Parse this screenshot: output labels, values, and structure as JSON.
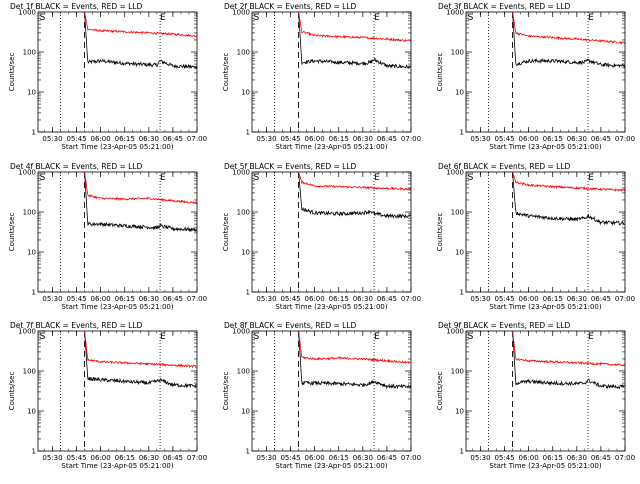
{
  "colors": {
    "events": "#000000",
    "lld": "#ff0000",
    "axis": "#000000"
  },
  "chart_data": [
    {
      "type": "line",
      "title": "Det 1f BLACK = Events, RED = LLD",
      "xlabel": "Start Time (23-Apr-05 05:21:00)",
      "ylabel": "Counts/sec",
      "x_ticks": [
        "05:30",
        "05:45",
        "06:00",
        "06:15",
        "06:30",
        "06:45",
        "07:00"
      ],
      "y_ticks": [
        "1",
        "10",
        "100",
        "1000"
      ],
      "y_scale": "log",
      "ylim": [
        1,
        1000
      ],
      "xlim": [
        "05:21",
        "07:00"
      ],
      "markers": {
        "S": "05:22",
        "E": "06:37"
      },
      "dotted_lines": [
        "05:35",
        "06:37"
      ],
      "dashed_line": "05:50",
      "series": [
        {
          "name": "Events",
          "x": [
            "05:50",
            "05:52",
            "06:00",
            "06:15",
            "06:30",
            "06:35",
            "06:37",
            "06:45",
            "07:00"
          ],
          "y": [
            1000,
            55,
            60,
            52,
            48,
            47,
            60,
            45,
            42
          ]
        },
        {
          "name": "LLD",
          "x": [
            "05:50",
            "05:52",
            "06:00",
            "06:15",
            "06:30",
            "06:45",
            "07:00"
          ],
          "y": [
            1000,
            370,
            340,
            320,
            300,
            280,
            250
          ]
        }
      ]
    },
    {
      "type": "line",
      "title": "Det 2f BLACK = Events, RED = LLD",
      "xlabel": "Start Time (23-Apr-05 05:21:00)",
      "ylabel": "Counts/sec",
      "x_ticks": [
        "05:30",
        "05:45",
        "06:00",
        "06:15",
        "06:30",
        "06:45",
        "07:00"
      ],
      "y_ticks": [
        "1",
        "10",
        "100",
        "1000"
      ],
      "y_scale": "log",
      "ylim": [
        1,
        1000
      ],
      "xlim": [
        "05:21",
        "07:00"
      ],
      "markers": {
        "S": "05:22",
        "E": "06:37"
      },
      "dotted_lines": [
        "05:35",
        "06:37"
      ],
      "dashed_line": "05:50",
      "series": [
        {
          "name": "Events",
          "x": [
            "05:50",
            "05:52",
            "06:00",
            "06:15",
            "06:30",
            "06:35",
            "06:37",
            "06:45",
            "07:00"
          ],
          "y": [
            1000,
            55,
            60,
            55,
            52,
            55,
            65,
            45,
            42
          ]
        },
        {
          "name": "LLD",
          "x": [
            "05:50",
            "05:52",
            "06:00",
            "06:15",
            "06:30",
            "06:45",
            "07:00"
          ],
          "y": [
            1000,
            320,
            260,
            240,
            230,
            210,
            190
          ]
        }
      ]
    },
    {
      "type": "line",
      "title": "Det 3f BLACK = Events, RED = LLD",
      "xlabel": "Start Time (23-Apr-05 05:21:00)",
      "ylabel": "Counts/sec",
      "x_ticks": [
        "05:30",
        "05:45",
        "06:00",
        "06:15",
        "06:30",
        "06:45",
        "07:00"
      ],
      "y_ticks": [
        "1",
        "10",
        "100",
        "1000"
      ],
      "y_scale": "log",
      "ylim": [
        1,
        1000
      ],
      "xlim": [
        "05:21",
        "07:00"
      ],
      "markers": {
        "S": "05:22",
        "E": "06:37"
      },
      "dotted_lines": [
        "05:35",
        "06:37"
      ],
      "dashed_line": "05:50",
      "series": [
        {
          "name": "Events",
          "x": [
            "05:50",
            "05:52",
            "06:00",
            "06:15",
            "06:30",
            "06:35",
            "06:37",
            "06:45",
            "07:00"
          ],
          "y": [
            1000,
            50,
            60,
            60,
            55,
            55,
            62,
            48,
            45
          ]
        },
        {
          "name": "LLD",
          "x": [
            "05:50",
            "05:52",
            "06:00",
            "06:15",
            "06:30",
            "06:45",
            "07:00"
          ],
          "y": [
            1000,
            300,
            250,
            230,
            210,
            190,
            170
          ]
        }
      ]
    },
    {
      "type": "line",
      "title": "Det 4f BLACK = Events, RED = LLD",
      "xlabel": "Start Time (23-Apr-05 05:21:00)",
      "ylabel": "Counts/sec",
      "x_ticks": [
        "05:30",
        "05:45",
        "06:00",
        "06:15",
        "06:30",
        "06:45",
        "07:00"
      ],
      "y_ticks": [
        "1",
        "10",
        "100",
        "1000"
      ],
      "y_scale": "log",
      "ylim": [
        1,
        1000
      ],
      "xlim": [
        "05:21",
        "07:00"
      ],
      "markers": {
        "S": "05:22",
        "E": "06:37"
      },
      "dotted_lines": [
        "05:35",
        "06:37"
      ],
      "dashed_line": "05:50",
      "series": [
        {
          "name": "Events",
          "x": [
            "05:50",
            "05:52",
            "06:00",
            "06:15",
            "06:30",
            "06:35",
            "06:37",
            "06:45",
            "07:00"
          ],
          "y": [
            1000,
            50,
            50,
            45,
            42,
            40,
            45,
            38,
            36
          ]
        },
        {
          "name": "LLD",
          "x": [
            "05:50",
            "05:52",
            "06:00",
            "06:15",
            "06:30",
            "06:45",
            "07:00"
          ],
          "y": [
            1000,
            260,
            220,
            210,
            220,
            190,
            170
          ]
        }
      ]
    },
    {
      "type": "line",
      "title": "Det 5f BLACK = Events, RED = LLD",
      "xlabel": "Start Time (23-Apr-05 05:21:00)",
      "ylabel": "Counts/sec",
      "x_ticks": [
        "05:30",
        "05:45",
        "06:00",
        "06:15",
        "06:30",
        "06:45",
        "07:00"
      ],
      "y_ticks": [
        "1",
        "10",
        "100",
        "1000"
      ],
      "y_scale": "log",
      "ylim": [
        1,
        1000
      ],
      "xlim": [
        "05:21",
        "07:00"
      ],
      "markers": {
        "S": "05:22",
        "E": "06:37"
      },
      "dotted_lines": [
        "05:35",
        "06:37"
      ],
      "dashed_line": "05:50",
      "series": [
        {
          "name": "Events",
          "x": [
            "05:50",
            "05:52",
            "06:00",
            "06:15",
            "06:30",
            "06:35",
            "06:37",
            "06:45",
            "07:00"
          ],
          "y": [
            1000,
            120,
            95,
            90,
            95,
            105,
            90,
            80,
            78
          ]
        },
        {
          "name": "LLD",
          "x": [
            "05:50",
            "05:52",
            "06:00",
            "06:15",
            "06:30",
            "06:45",
            "07:00"
          ],
          "y": [
            1000,
            560,
            450,
            430,
            410,
            390,
            370
          ]
        }
      ]
    },
    {
      "type": "line",
      "title": "Det 6f BLACK = Events, RED = LLD",
      "xlabel": "Start Time (23-Apr-05 05:21:00)",
      "ylabel": "Counts/sec",
      "x_ticks": [
        "05:30",
        "05:45",
        "06:00",
        "06:15",
        "06:30",
        "06:45",
        "07:00"
      ],
      "y_ticks": [
        "1",
        "10",
        "100",
        "1000"
      ],
      "y_scale": "log",
      "ylim": [
        1,
        1000
      ],
      "xlim": [
        "05:21",
        "07:00"
      ],
      "markers": {
        "S": "05:22",
        "E": "06:37"
      },
      "dotted_lines": [
        "05:35",
        "06:37"
      ],
      "dashed_line": "05:50",
      "series": [
        {
          "name": "Events",
          "x": [
            "05:50",
            "05:52",
            "06:00",
            "06:15",
            "06:30",
            "06:35",
            "06:37",
            "06:45",
            "07:00"
          ],
          "y": [
            1000,
            95,
            80,
            70,
            65,
            70,
            80,
            55,
            52
          ]
        },
        {
          "name": "LLD",
          "x": [
            "05:50",
            "05:52",
            "06:00",
            "06:15",
            "06:30",
            "06:45",
            "07:00"
          ],
          "y": [
            1000,
            560,
            470,
            430,
            400,
            370,
            350
          ]
        }
      ]
    },
    {
      "type": "line",
      "title": "Det 7f BLACK = Events, RED = LLD",
      "xlabel": "Start Time (23-Apr-05 05:21:00)",
      "ylabel": "Counts/sec",
      "x_ticks": [
        "05:30",
        "05:45",
        "06:00",
        "06:15",
        "06:30",
        "06:45",
        "07:00"
      ],
      "y_ticks": [
        "1",
        "10",
        "100",
        "1000"
      ],
      "y_scale": "log",
      "ylim": [
        1,
        1000
      ],
      "xlim": [
        "05:21",
        "07:00"
      ],
      "markers": {
        "S": "05:22",
        "E": "06:37"
      },
      "dotted_lines": [
        "05:35",
        "06:37"
      ],
      "dashed_line": "05:50",
      "series": [
        {
          "name": "Events",
          "x": [
            "05:50",
            "05:52",
            "06:00",
            "06:15",
            "06:30",
            "06:35",
            "06:37",
            "06:45",
            "07:00"
          ],
          "y": [
            1000,
            65,
            60,
            55,
            50,
            55,
            60,
            45,
            42
          ]
        },
        {
          "name": "LLD",
          "x": [
            "05:50",
            "05:52",
            "06:00",
            "06:15",
            "06:30",
            "06:45",
            "07:00"
          ],
          "y": [
            1000,
            190,
            170,
            160,
            150,
            140,
            130
          ]
        }
      ]
    },
    {
      "type": "line",
      "title": "Det 8f BLACK = Events, RED = LLD",
      "xlabel": "Start Time (23-Apr-05 05:21:00)",
      "ylabel": "Counts/sec",
      "x_ticks": [
        "05:30",
        "05:45",
        "06:00",
        "06:15",
        "06:30",
        "06:45",
        "07:00"
      ],
      "y_ticks": [
        "1",
        "10",
        "100",
        "1000"
      ],
      "y_scale": "log",
      "ylim": [
        1,
        1000
      ],
      "xlim": [
        "05:21",
        "07:00"
      ],
      "markers": {
        "S": "05:22",
        "E": "06:37"
      },
      "dotted_lines": [
        "05:35",
        "06:37"
      ],
      "dashed_line": "05:50",
      "series": [
        {
          "name": "Events",
          "x": [
            "05:50",
            "05:52",
            "06:00",
            "06:15",
            "06:30",
            "06:35",
            "06:37",
            "06:45",
            "07:00"
          ],
          "y": [
            1000,
            50,
            50,
            48,
            45,
            50,
            55,
            42,
            40
          ]
        },
        {
          "name": "LLD",
          "x": [
            "05:50",
            "05:52",
            "06:00",
            "06:15",
            "06:30",
            "06:45",
            "07:00"
          ],
          "y": [
            1000,
            220,
            200,
            210,
            200,
            180,
            160
          ]
        }
      ]
    },
    {
      "type": "line",
      "title": "Det 9f BLACK = Events, RED = LLD",
      "xlabel": "Start Time (23-Apr-05 05:21:00)",
      "ylabel": "Counts/sec",
      "x_ticks": [
        "05:30",
        "05:45",
        "06:00",
        "06:15",
        "06:30",
        "06:45",
        "07:00"
      ],
      "y_ticks": [
        "1",
        "10",
        "100",
        "1000"
      ],
      "y_scale": "log",
      "ylim": [
        1,
        1000
      ],
      "xlim": [
        "05:21",
        "07:00"
      ],
      "markers": {
        "S": "05:22",
        "E": "06:37"
      },
      "dotted_lines": [
        "05:35",
        "06:37"
      ],
      "dashed_line": "05:50",
      "series": [
        {
          "name": "Events",
          "x": [
            "05:50",
            "05:52",
            "06:00",
            "06:15",
            "06:30",
            "06:35",
            "06:37",
            "06:45",
            "07:00"
          ],
          "y": [
            1000,
            50,
            55,
            50,
            48,
            50,
            58,
            42,
            40
          ]
        },
        {
          "name": "LLD",
          "x": [
            "05:50",
            "05:52",
            "06:00",
            "06:15",
            "06:30",
            "06:45",
            "07:00"
          ],
          "y": [
            1000,
            200,
            180,
            170,
            160,
            150,
            140
          ]
        }
      ]
    }
  ]
}
